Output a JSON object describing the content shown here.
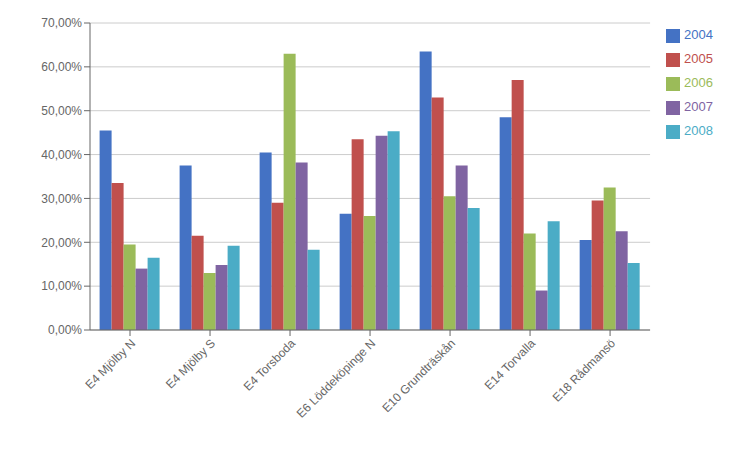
{
  "chart_data": {
    "type": "bar",
    "categories": [
      "E4 Mjölby N",
      "E4 Mjölby S",
      "E4 Torsboda",
      "E6 Löddeköpinge N",
      "E10 Grundträskån",
      "E14 Torvalla",
      "E18 Rådmansö"
    ],
    "series": [
      {
        "name": "2004",
        "color": "#4472C4",
        "values": [
          0.455,
          0.375,
          0.405,
          0.265,
          0.635,
          0.485,
          0.205
        ]
      },
      {
        "name": "2005",
        "color": "#C0504D",
        "values": [
          0.335,
          0.215,
          0.29,
          0.435,
          0.53,
          0.57,
          0.295
        ]
      },
      {
        "name": "2006",
        "color": "#9BBB59",
        "values": [
          0.195,
          0.13,
          0.63,
          0.26,
          0.305,
          0.22,
          0.325
        ]
      },
      {
        "name": "2007",
        "color": "#8064A2",
        "values": [
          0.14,
          0.148,
          0.382,
          0.443,
          0.375,
          0.09,
          0.225
        ]
      },
      {
        "name": "2008",
        "color": "#4BACC6",
        "values": [
          0.165,
          0.192,
          0.183,
          0.453,
          0.278,
          0.248,
          0.153
        ]
      }
    ],
    "ylim": [
      0.0,
      0.7
    ],
    "yticks": [
      {
        "value": 0.0,
        "label": "0,00%"
      },
      {
        "value": 0.1,
        "label": "10,00%"
      },
      {
        "value": 0.2,
        "label": "20,00%"
      },
      {
        "value": 0.3,
        "label": "30,00%"
      },
      {
        "value": 0.4,
        "label": "40,00%"
      },
      {
        "value": 0.5,
        "label": "50,00%"
      },
      {
        "value": 0.6,
        "label": "60,00%"
      },
      {
        "value": 0.7,
        "label": "70,00%"
      }
    ],
    "grid": true,
    "legend": "right"
  }
}
